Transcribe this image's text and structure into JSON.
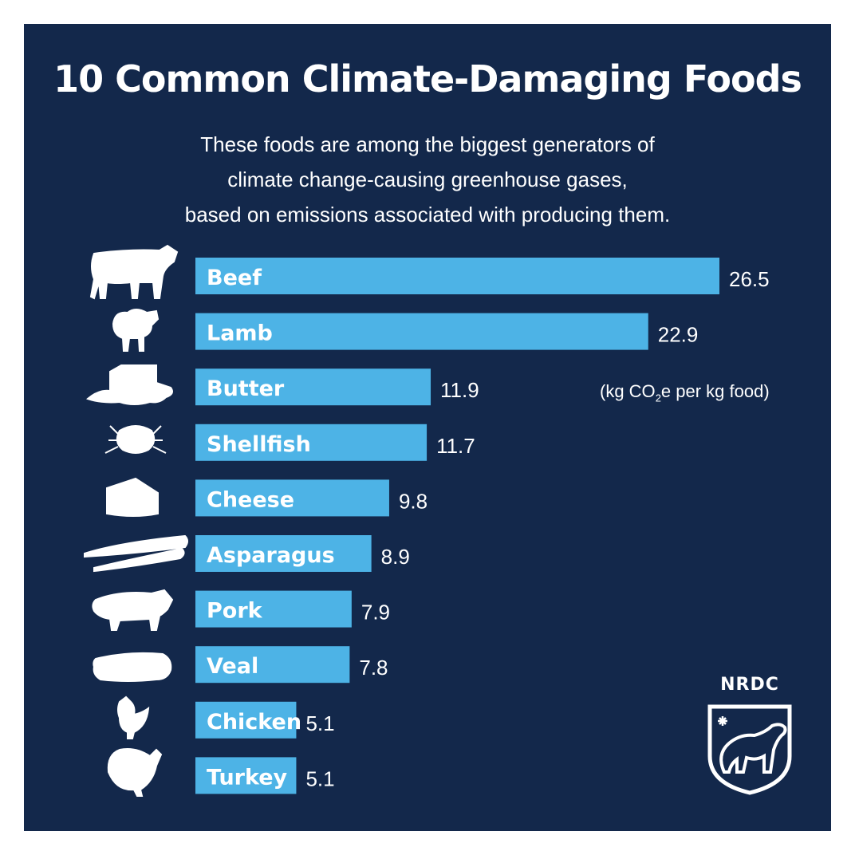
{
  "title": "10 Common Climate-Damaging Foods",
  "subtitle_lines": [
    "These foods are among the biggest generators of",
    "climate change-causing greenhouse gases,",
    "based on emissions associated with producing them."
  ],
  "units": {
    "pre": "(kg CO",
    "sub": "2",
    "post": "e per kg food)"
  },
  "logo_text": "NRDC",
  "colors": {
    "background": "#13284b",
    "bar": "#4db3e6",
    "text": "#ffffff"
  },
  "chart_data": {
    "type": "bar",
    "orientation": "horizontal",
    "categories": [
      "Beef",
      "Lamb",
      "Butter",
      "Shellfish",
      "Cheese",
      "Asparagus",
      "Pork",
      "Veal",
      "Chicken",
      "Turkey"
    ],
    "value_labels": [
      "26.5",
      "22.9",
      "11.9",
      "11.7",
      "9.8",
      "8.9",
      "7.9",
      "7.8",
      "5.1",
      "5.1"
    ],
    "values": [
      26.5,
      22.9,
      11.9,
      11.7,
      9.8,
      8.9,
      7.9,
      7.8,
      5.1,
      5.1
    ],
    "icons": [
      "cow-icon",
      "sheep-icon",
      "butter-icon",
      "crab-icon",
      "cheese-icon",
      "asparagus-icon",
      "pig-icon",
      "steak-icon",
      "chicken-icon",
      "turkey-icon"
    ],
    "title": "10 Common Climate-Damaging Foods",
    "xlabel": "(kg CO2e per kg food)",
    "ylabel": "",
    "xlim": [
      0,
      26.5
    ],
    "grid": false,
    "legend": "none"
  }
}
